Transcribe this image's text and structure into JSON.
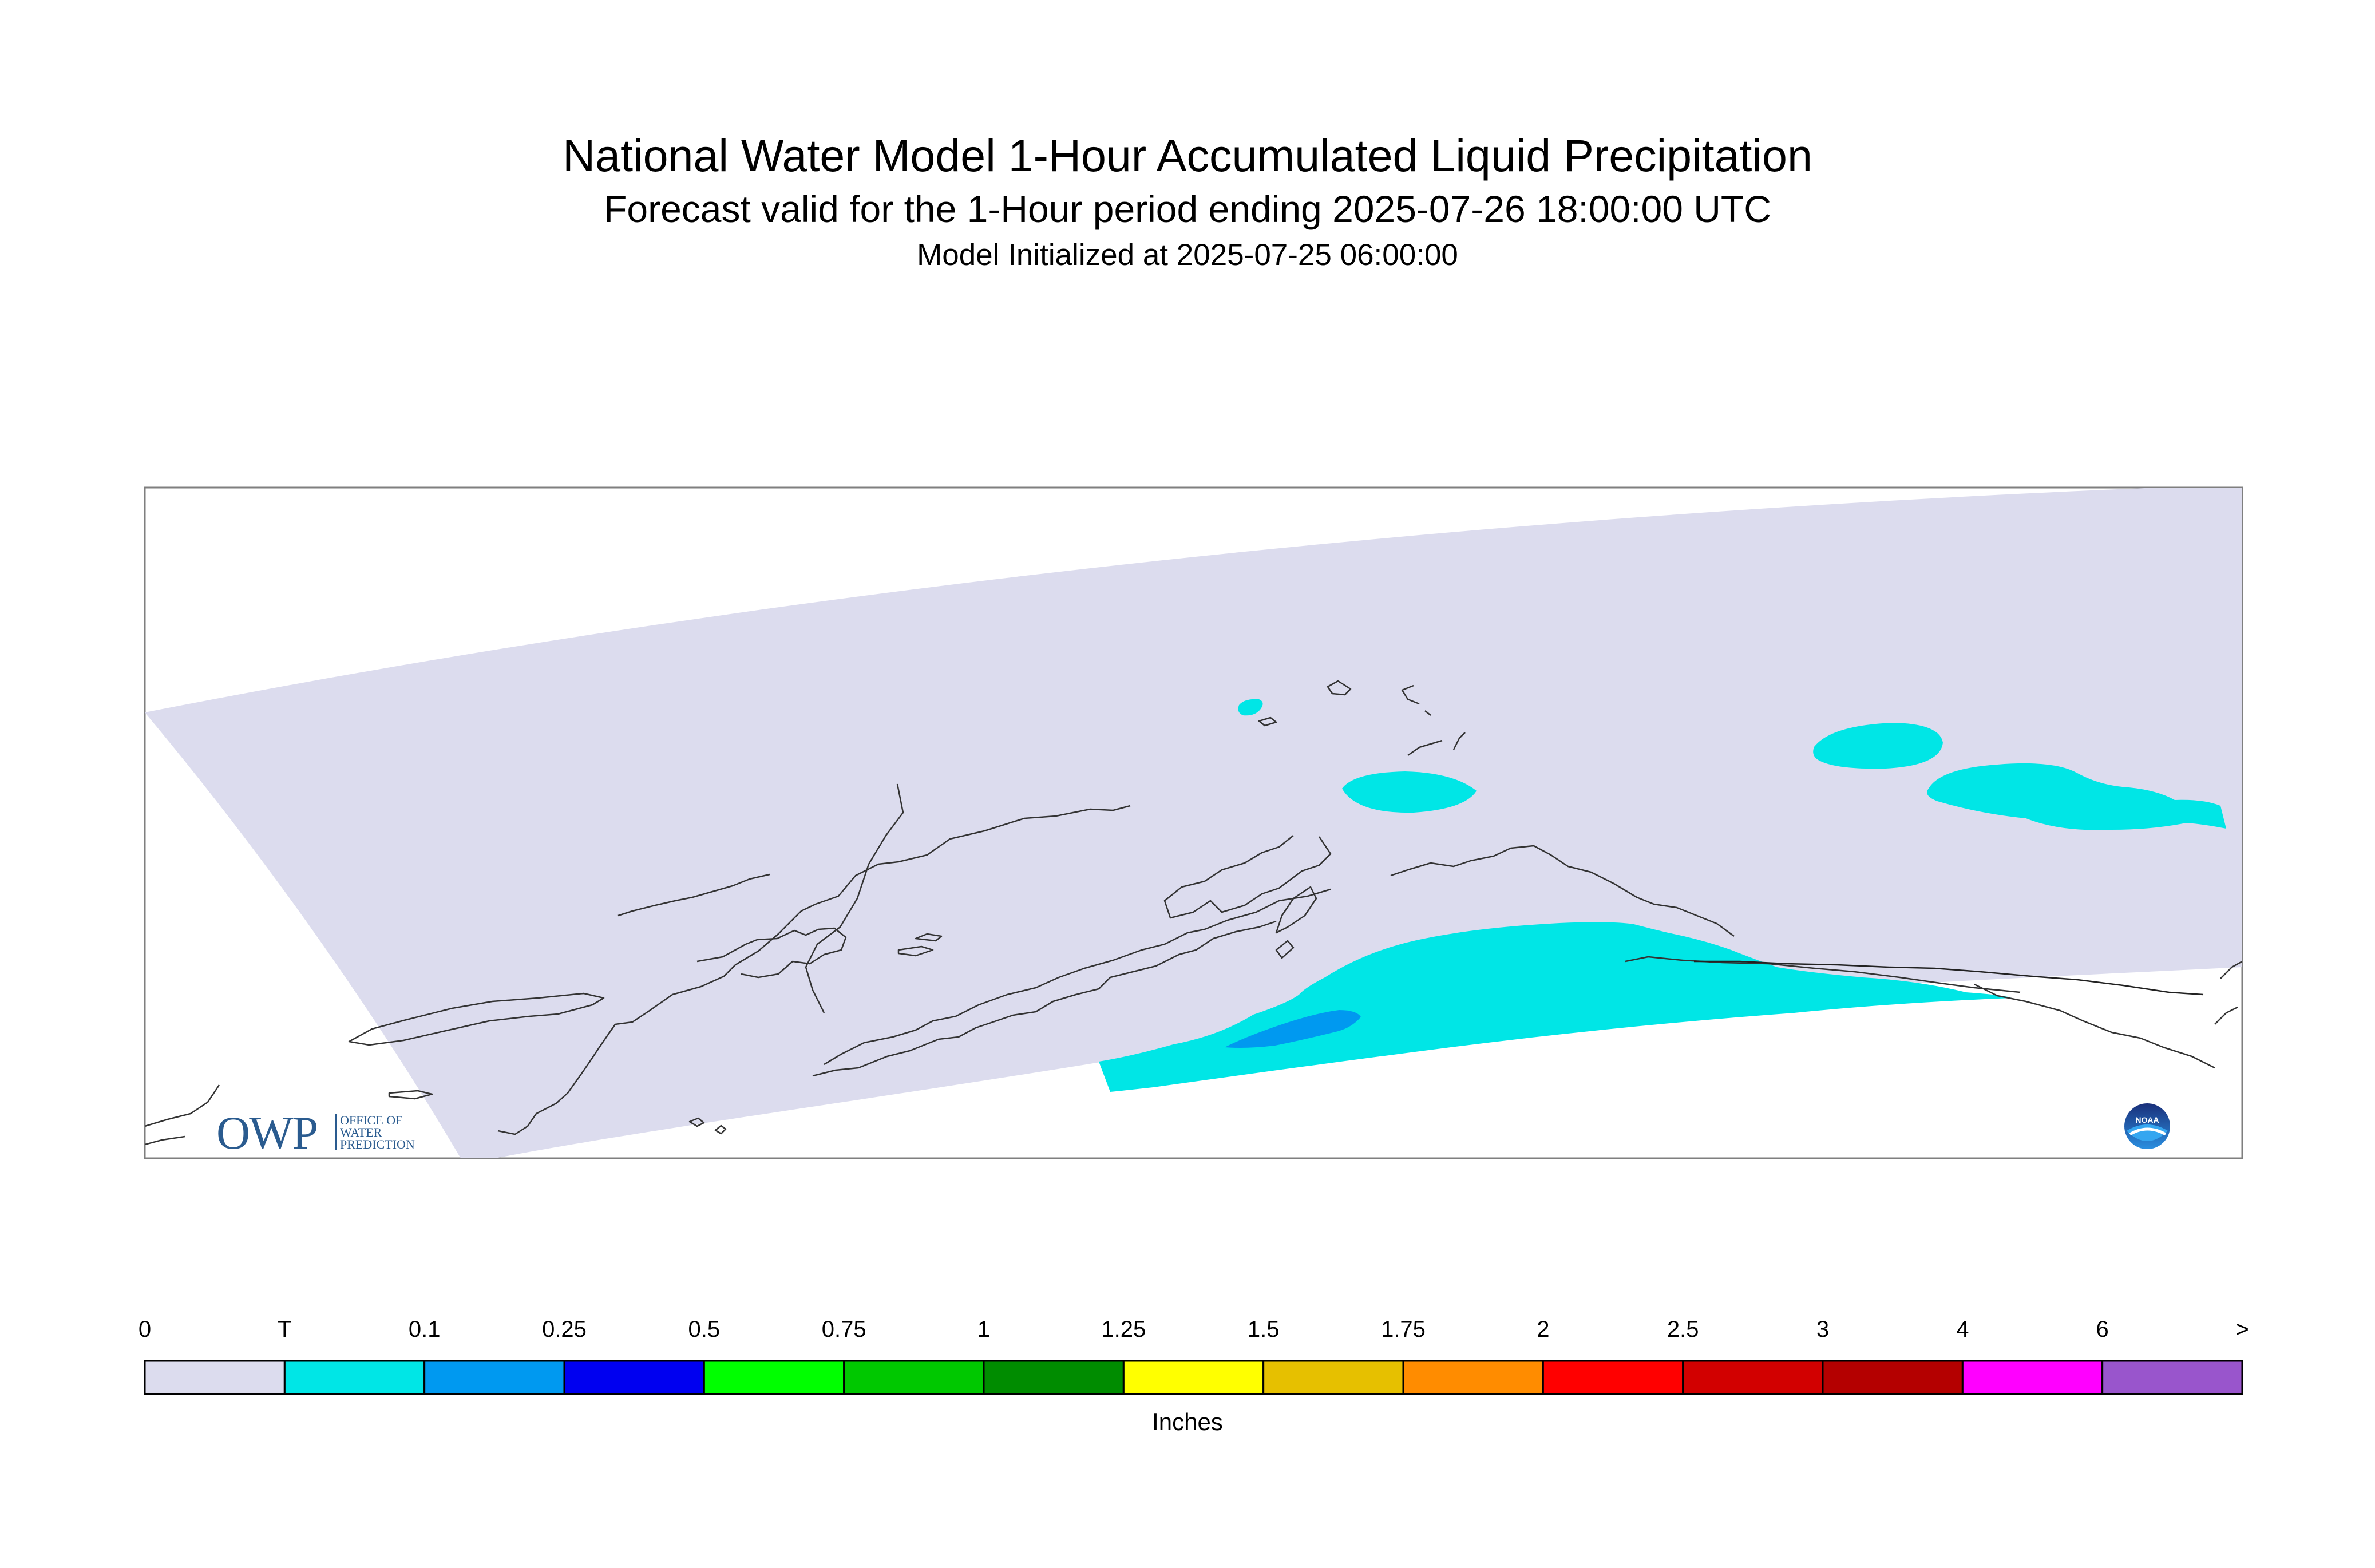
{
  "title": {
    "line1": "National Water Model 1-Hour Accumulated Liquid Precipitation",
    "line2": "Forecast valid for the 1-Hour period ending 2025-07-26 18:00:00 UTC",
    "line3": "Model Initialized at 2025-07-25 06:00:00"
  },
  "colorbar": {
    "labels": [
      "0",
      "T",
      "0.1",
      "0.25",
      "0.5",
      "0.75",
      "1",
      "1.25",
      "1.5",
      "1.75",
      "2",
      "2.5",
      "3",
      "4",
      "6",
      ">"
    ],
    "colors": [
      "#dcdcee",
      "#00e6e6",
      "#0099f0",
      "#0000f0",
      "#00ff00",
      "#00c800",
      "#008c00",
      "#ffff00",
      "#e6c000",
      "#ff8c00",
      "#ff0000",
      "#d20000",
      "#b40000",
      "#ff00ff",
      "#9955cc"
    ],
    "unit": "Inches"
  },
  "map": {
    "domain_fill": "#dcdcee",
    "coastline_color": "#333333",
    "regions": [
      {
        "category": "T",
        "color": "#00e6e6"
      },
      {
        "category": "0.1",
        "color": "#0099f0"
      }
    ]
  },
  "logos": {
    "owp_short": "OWP",
    "owp_long": [
      "OFFICE OF",
      "WATER",
      "PREDICTION"
    ],
    "noaa": "NOAA"
  }
}
